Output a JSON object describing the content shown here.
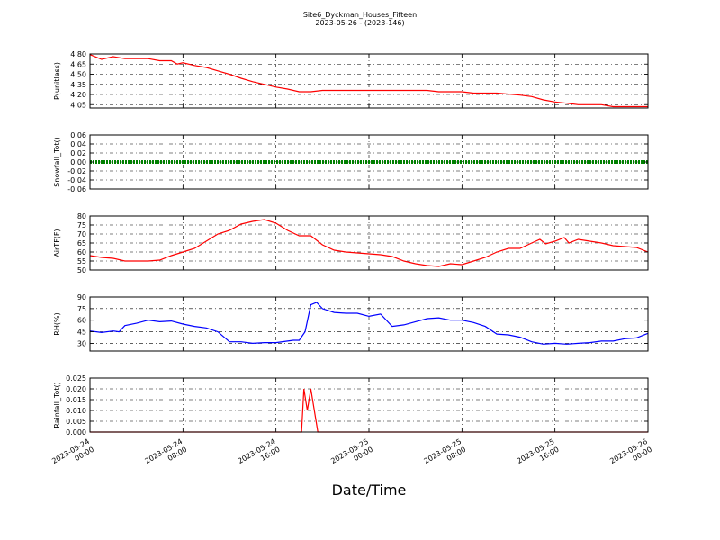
{
  "chart_data": [
    {
      "type": "line",
      "title_line1": "Site6_Dyckman_Houses_Fifteen",
      "title_line2": "2023-05-26 - (2023-146)",
      "xlabel": "Date/Time",
      "ylabel": "P(unitless)",
      "ylim": [
        4.0,
        4.8
      ],
      "yticks": [
        4.05,
        4.2,
        4.35,
        4.5,
        4.65,
        4.8
      ],
      "ytick_labels": [
        "4.05",
        "4.20",
        "4.35",
        "4.50",
        "4.65",
        "4.80"
      ],
      "x_ticks": [
        "2023-05-24\n00:00",
        "2023-05-24\n08:00",
        "2023-05-24\n16:00",
        "2023-05-25\n00:00",
        "2023-05-25\n08:00",
        "2023-05-25\n16:00",
        "2023-05-26\n00:00"
      ],
      "x_hours": [
        0,
        48
      ],
      "grid": true,
      "color": "#ff0000",
      "series": [
        {
          "x": [
            0,
            1.0,
            2.0,
            3.0,
            5.0,
            6.0,
            7.0,
            7.5,
            8.0,
            9.0,
            10.0,
            11.0,
            12.0,
            13.0,
            14.0,
            15.0,
            16.0,
            17.0,
            18.0,
            19.0,
            20.0,
            21.0,
            25.0,
            29.0,
            30.0,
            32.0,
            33.0,
            35.0,
            37.0,
            38.0,
            39.0,
            40.0,
            41.0,
            42.0,
            44.0,
            45.0,
            48.0
          ],
          "values": [
            4.79,
            4.72,
            4.76,
            4.73,
            4.73,
            4.7,
            4.7,
            4.65,
            4.67,
            4.63,
            4.6,
            4.55,
            4.5,
            4.44,
            4.39,
            4.35,
            4.31,
            4.28,
            4.24,
            4.24,
            4.26,
            4.26,
            4.26,
            4.26,
            4.24,
            4.24,
            4.22,
            4.22,
            4.19,
            4.17,
            4.12,
            4.09,
            4.07,
            4.05,
            4.05,
            4.02,
            4.02
          ]
        }
      ]
    },
    {
      "type": "line",
      "ylabel": "Snowfall_Tot()",
      "ylim": [
        -0.06,
        0.06
      ],
      "yticks": [
        -0.06,
        -0.04,
        -0.02,
        0.0,
        0.02,
        0.04,
        0.06
      ],
      "ytick_labels": [
        "-0.06",
        "-0.04",
        "-0.02",
        "0.00",
        "0.02",
        "0.04",
        "0.06"
      ],
      "grid": true,
      "color": "#008000",
      "series": [
        {
          "x": [
            0,
            48
          ],
          "values": [
            0.0,
            0.0
          ]
        }
      ]
    },
    {
      "type": "line",
      "ylabel": "AirTF(F)",
      "ylim": [
        50,
        80
      ],
      "yticks": [
        50,
        55,
        60,
        65,
        70,
        75,
        80
      ],
      "ytick_labels": [
        "50",
        "55",
        "60",
        "65",
        "70",
        "75",
        "80"
      ],
      "grid": true,
      "color": "#ff0000",
      "series": [
        {
          "x": [
            0,
            1,
            2,
            3,
            4,
            5,
            6,
            7,
            8,
            9,
            10,
            11,
            12,
            13,
            14,
            15,
            16,
            17,
            18,
            19,
            20,
            21,
            22,
            23,
            24,
            25,
            26,
            27,
            28,
            29,
            30,
            31,
            32,
            33,
            34,
            35,
            36,
            37,
            38,
            38.7,
            39.2,
            40,
            40.8,
            41.2,
            42,
            43,
            44,
            45,
            46,
            47,
            48
          ],
          "values": [
            58,
            57,
            56.5,
            55,
            55,
            55,
            55.5,
            58,
            60,
            62,
            66,
            70,
            72,
            75.5,
            77,
            78,
            76,
            72,
            69,
            69,
            64,
            61,
            60,
            59.5,
            59,
            58.5,
            57.5,
            55,
            53.5,
            52.5,
            52,
            53.5,
            53,
            55,
            57,
            60,
            62,
            62,
            65,
            67,
            64.5,
            66,
            68,
            65,
            67,
            66,
            65,
            63.5,
            63,
            62.5,
            60
          ]
        }
      ]
    },
    {
      "type": "line",
      "ylabel": "RH(%)",
      "ylim": [
        20,
        90
      ],
      "yticks": [
        30,
        45,
        60,
        75,
        90
      ],
      "ytick_labels": [
        "30",
        "45",
        "60",
        "75",
        "90"
      ],
      "grid": true,
      "color": "#0000ff",
      "series": [
        {
          "x": [
            0,
            1,
            2,
            2.5,
            3,
            4,
            5,
            6,
            7,
            8,
            9,
            10,
            11,
            12,
            13,
            14,
            15,
            16,
            17,
            17.5,
            18,
            18.5,
            19,
            19.5,
            20,
            21,
            22,
            23,
            24,
            25,
            26,
            27,
            28,
            29,
            30,
            31,
            32,
            33,
            34,
            35,
            36,
            37,
            38,
            39,
            40,
            41,
            42,
            43,
            44,
            45,
            46,
            47,
            48
          ],
          "values": [
            46,
            44,
            46,
            45,
            53,
            56,
            60,
            58,
            59,
            55,
            52,
            50,
            45,
            32,
            32,
            30,
            31,
            31,
            33,
            34,
            34,
            45,
            80,
            83,
            75,
            70,
            69,
            69,
            65,
            68,
            52,
            54,
            58,
            62,
            63,
            60,
            60,
            57,
            52,
            42,
            41,
            38,
            32,
            29,
            30,
            29,
            30,
            31,
            33,
            33,
            36,
            37,
            43
          ]
        }
      ]
    },
    {
      "type": "line",
      "ylabel": "Rainfall_Tot()",
      "ylim": [
        0.0,
        0.025
      ],
      "yticks": [
        0.0,
        0.005,
        0.01,
        0.015,
        0.02,
        0.025
      ],
      "ytick_labels": [
        "0.000",
        "0.005",
        "0.010",
        "0.015",
        "0.020",
        "0.025"
      ],
      "grid": true,
      "color": "#ff0000",
      "series": [
        {
          "x": [
            0,
            18.2,
            18.4,
            18.7,
            19.0,
            19.3,
            19.6,
            48
          ],
          "values": [
            0,
            0,
            0.02,
            0.01,
            0.02,
            0.01,
            0,
            0
          ]
        }
      ]
    }
  ]
}
